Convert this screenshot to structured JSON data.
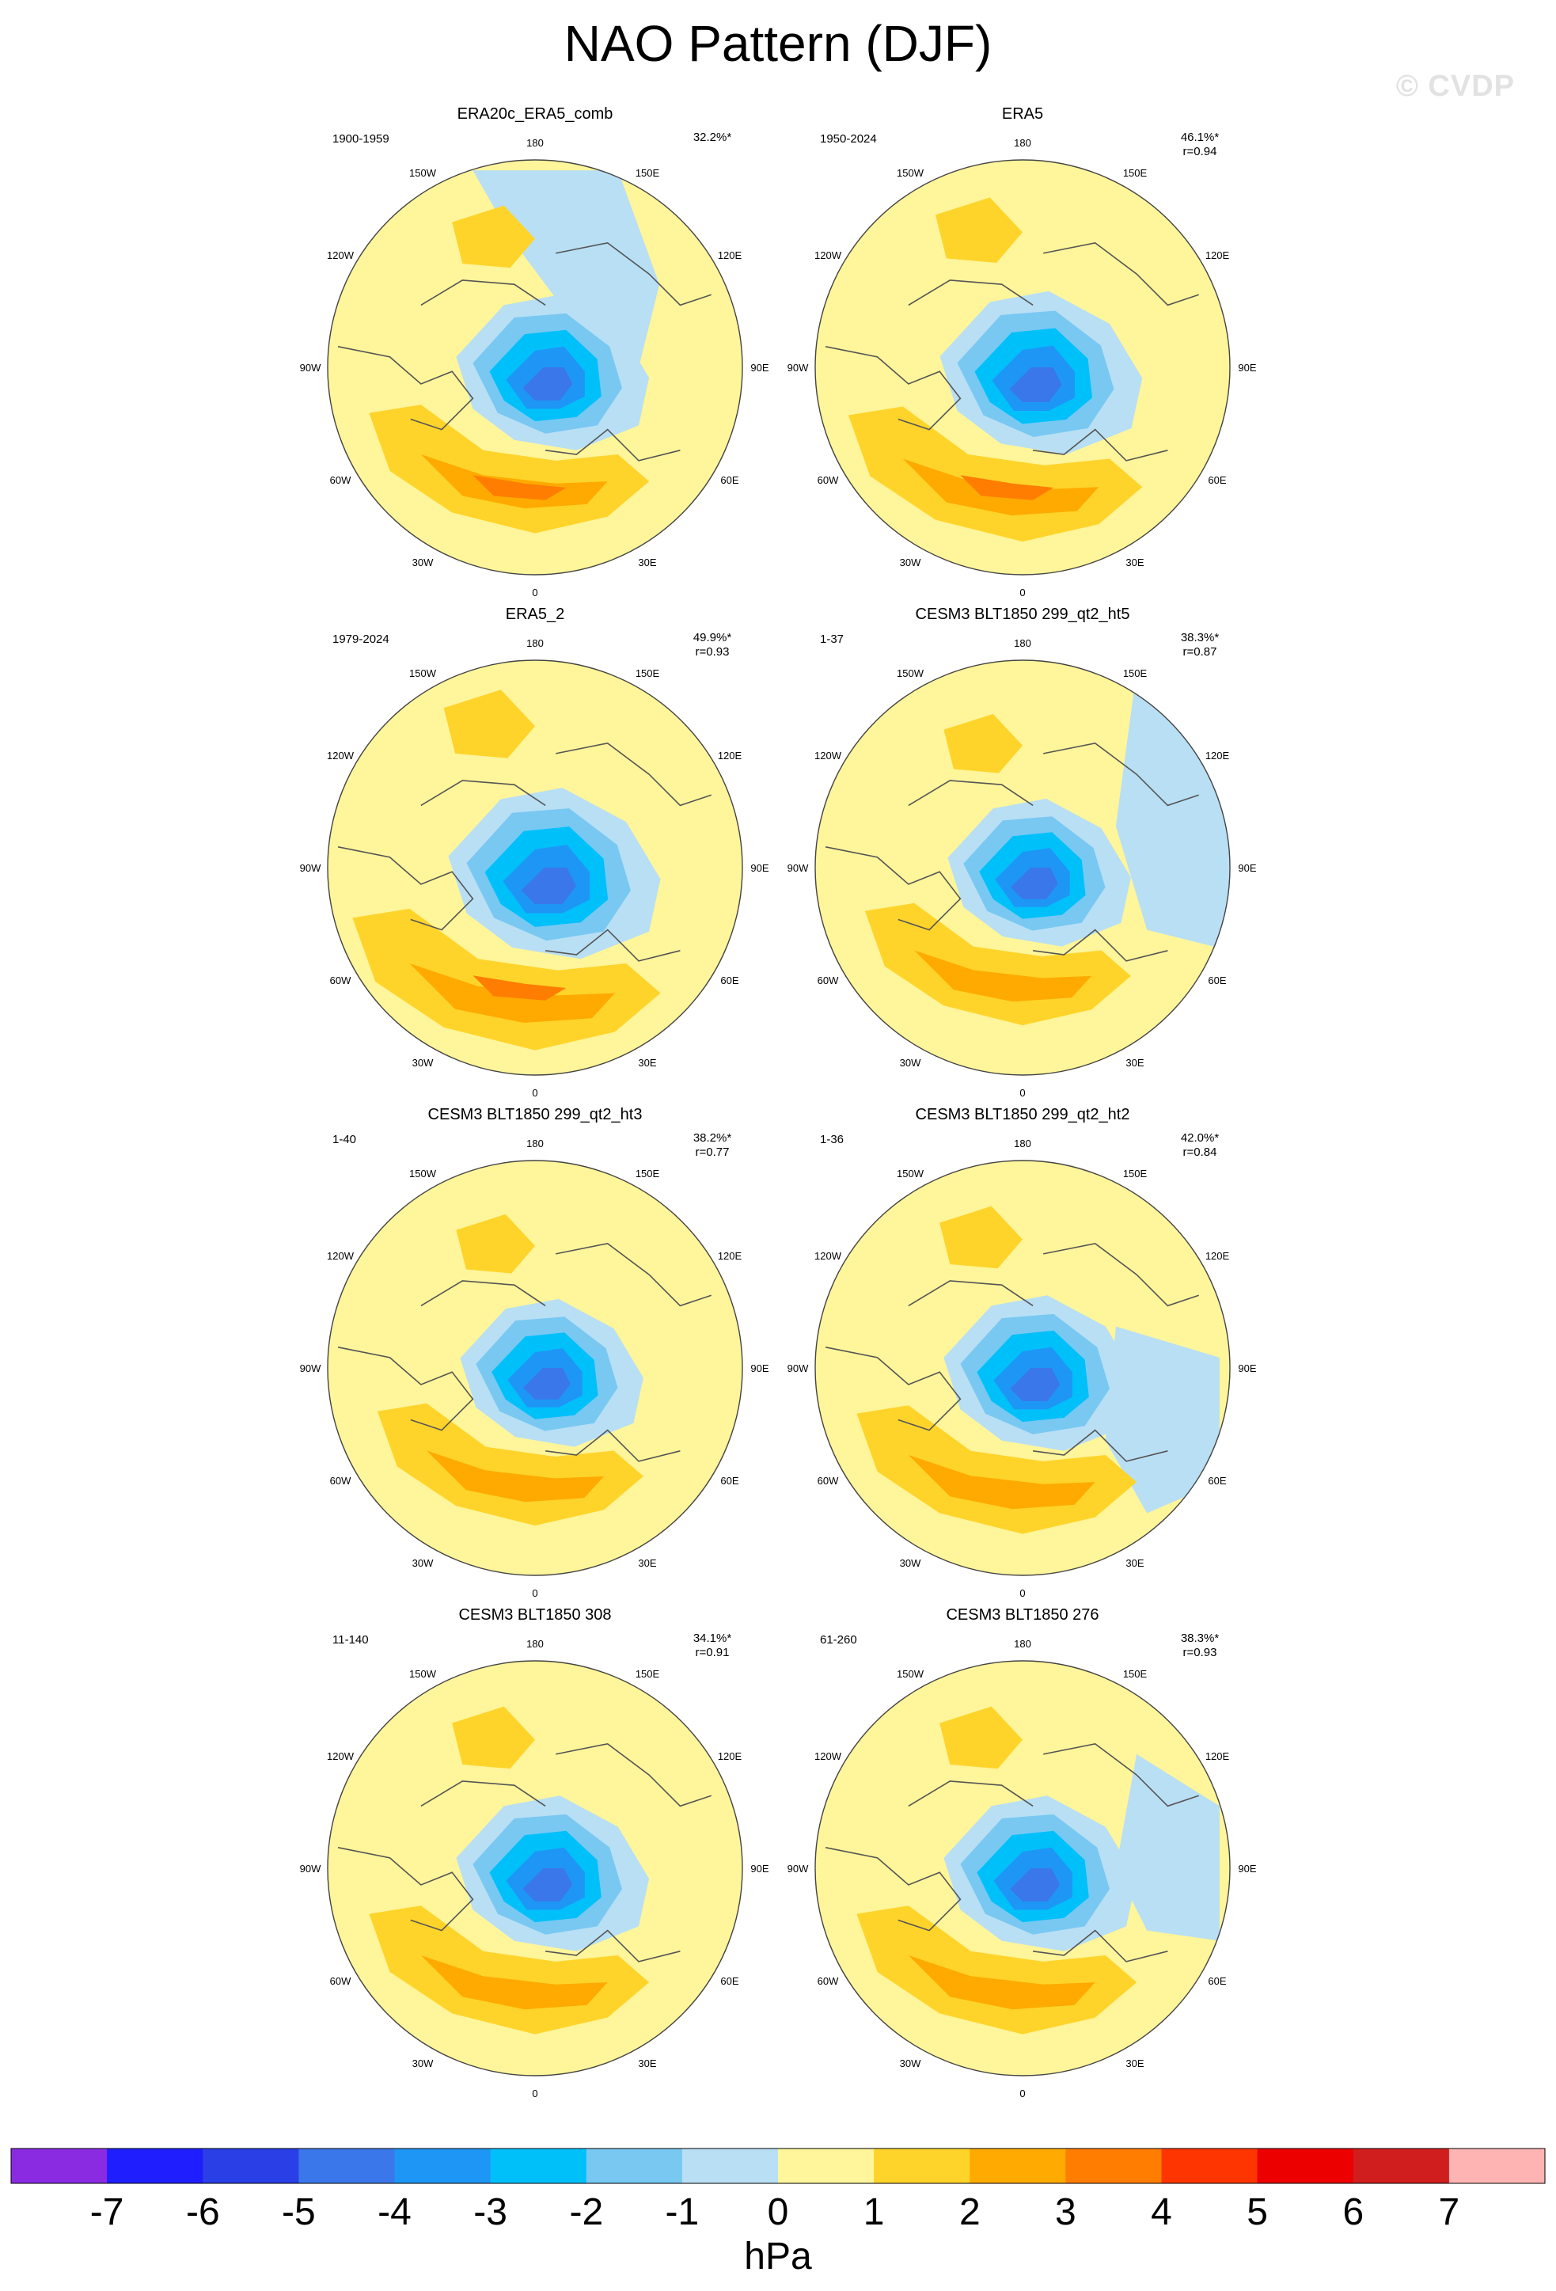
{
  "figure": {
    "title": "NAO Pattern (DJF)",
    "watermark": "© CVDP"
  },
  "longitude_labels": [
    "180",
    "150E",
    "120E",
    "90E",
    "60E",
    "30E",
    "0",
    "30W",
    "60W",
    "90W",
    "120W",
    "150W"
  ],
  "panels": [
    {
      "title": "ERA20c_ERA5_comb",
      "years": "1900-1959",
      "pct_var": "32.2%*",
      "pattern_corr": ""
    },
    {
      "title": "ERA5",
      "years": "1950-2024",
      "pct_var": "46.1%*",
      "pattern_corr": "r=0.94"
    },
    {
      "title": "ERA5_2",
      "years": "1979-2024",
      "pct_var": "49.9%*",
      "pattern_corr": "r=0.93"
    },
    {
      "title": "CESM3 BLT1850 299_qt2_ht5",
      "years": "1-37",
      "pct_var": "38.3%*",
      "pattern_corr": "r=0.87"
    },
    {
      "title": "CESM3 BLT1850 299_qt2_ht3",
      "years": "1-40",
      "pct_var": "38.2%*",
      "pattern_corr": "r=0.77"
    },
    {
      "title": "CESM3 BLT1850 299_qt2_ht2",
      "years": "1-36",
      "pct_var": "42.0%*",
      "pattern_corr": "r=0.84"
    },
    {
      "title": "CESM3 BLT1850 308",
      "years": "11-140",
      "pct_var": "34.1%*",
      "pattern_corr": "r=0.91"
    },
    {
      "title": "CESM3 BLT1850 276",
      "years": "61-260",
      "pct_var": "38.3%*",
      "pattern_corr": "r=0.93"
    }
  ],
  "colorbar": {
    "unit_label": "hPa",
    "tick_labels": [
      "-7",
      "-6",
      "-5",
      "-4",
      "-3",
      "-2",
      "-1",
      "0",
      "1",
      "2",
      "3",
      "4",
      "5",
      "6",
      "7"
    ],
    "colors": [
      "#8a2be2",
      "#1e1eff",
      "#2a3fe6",
      "#3a77ea",
      "#1e96f5",
      "#00c0fa",
      "#78c8f2",
      "#b8dff4",
      "#fff59a",
      "#ffd42a",
      "#ffaa00",
      "#ff7d00",
      "#ff3500",
      "#ec0000",
      "#d01e1e",
      "#ffb4b4"
    ]
  },
  "palette": {
    "land_outline": "#555555",
    "neutral_positive": "#fff59a",
    "neutral_negative": "#b8dff4"
  }
}
